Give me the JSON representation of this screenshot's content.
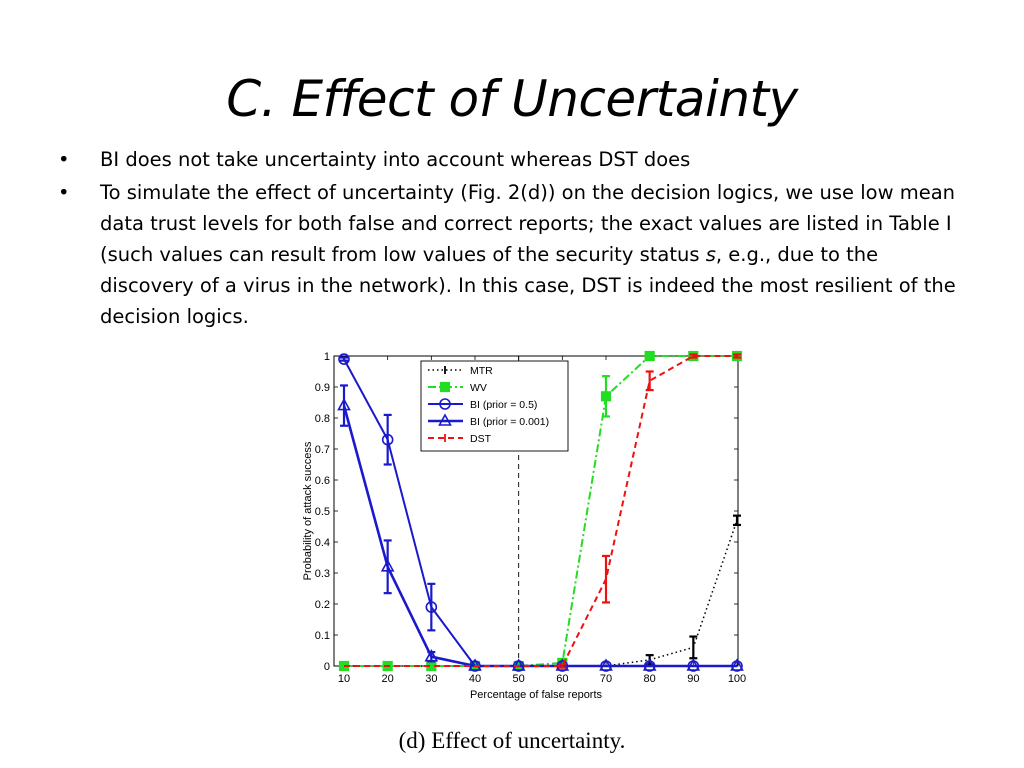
{
  "slide": {
    "title": "C. Effect of Uncertainty",
    "bullets": [
      {
        "text": "BI does not take uncertainty into account whereas DST does"
      },
      {
        "text_before": "To simulate the effect of uncertainty (Fig. 2(d)) on the decision logics, we use low mean data trust levels for both false and correct reports; the exact values are listed in Table I (such values can result from low values of the security status ",
        "italic": "s",
        "text_after": ", e.g., due to the discovery of a virus in the network). In this case, DST is indeed the most resilient of the decision logics."
      }
    ],
    "bullet_glyph": "•",
    "caption": "(d)  Effect of uncertainty."
  },
  "chart_data": {
    "type": "line",
    "xlabel": "Percentage of false reports",
    "ylabel": "Probability of attack success",
    "x": [
      10,
      20,
      30,
      40,
      50,
      60,
      70,
      80,
      90,
      100
    ],
    "xlim": [
      10,
      100
    ],
    "ylim": [
      0,
      1
    ],
    "xticks": [
      10,
      20,
      30,
      40,
      50,
      60,
      70,
      80,
      90,
      100
    ],
    "yticks": [
      0,
      0.1,
      0.2,
      0.3,
      0.4,
      0.5,
      0.6,
      0.7,
      0.8,
      0.9,
      1
    ],
    "ytick_labels": [
      "0",
      "0.1",
      "0.2",
      "0.3",
      "0.4",
      "0.5",
      "0.6",
      "0.7",
      "0.8",
      "0.9",
      "1"
    ],
    "grid": false,
    "legend_position": "top-center",
    "vline_x": 50,
    "series": [
      {
        "name": "MTR",
        "color": "#000000",
        "dash": "dotted",
        "marker": "errorbar",
        "values": [
          0,
          0,
          0,
          0,
          0,
          0,
          0,
          0.02,
          0.06,
          0.47
        ],
        "errors": [
          0,
          0,
          0,
          0,
          0.005,
          0.005,
          0,
          0.015,
          0.035,
          0.015
        ]
      },
      {
        "name": "WV",
        "color": "#22dd22",
        "dash": "dashdot",
        "marker": "square",
        "values": [
          0,
          0,
          0,
          0,
          0,
          0.01,
          0.87,
          1,
          1,
          1
        ],
        "errors": [
          0,
          0,
          0,
          0,
          0,
          0.005,
          0.065,
          0.005,
          0.005,
          0.005
        ]
      },
      {
        "name": "BI (prior = 0.5)",
        "color": "#1a1acc",
        "dash": "solid",
        "marker": "circle",
        "values": [
          0.99,
          0.73,
          0.19,
          0,
          0,
          0,
          0,
          0,
          0,
          0
        ],
        "errors": [
          0.005,
          0.08,
          0.075,
          0,
          0,
          0,
          0,
          0,
          0,
          0
        ]
      },
      {
        "name": "BI (prior = 0.001)",
        "color": "#1a1acc",
        "dash": "solid-thick",
        "marker": "triangle",
        "values": [
          0.84,
          0.32,
          0.03,
          0,
          0,
          0,
          0,
          0,
          0,
          0
        ],
        "errors": [
          0.065,
          0.085,
          0.015,
          0,
          0,
          0,
          0,
          0,
          0,
          0
        ]
      },
      {
        "name": "DST",
        "color": "#ee1111",
        "dash": "dashed",
        "marker": "errorbar",
        "values": [
          0,
          0,
          0,
          0,
          0,
          0,
          0.28,
          0.92,
          1,
          1
        ],
        "errors": [
          0,
          0,
          0,
          0,
          0,
          0.005,
          0.075,
          0.03,
          0.005,
          0.005
        ]
      }
    ]
  }
}
